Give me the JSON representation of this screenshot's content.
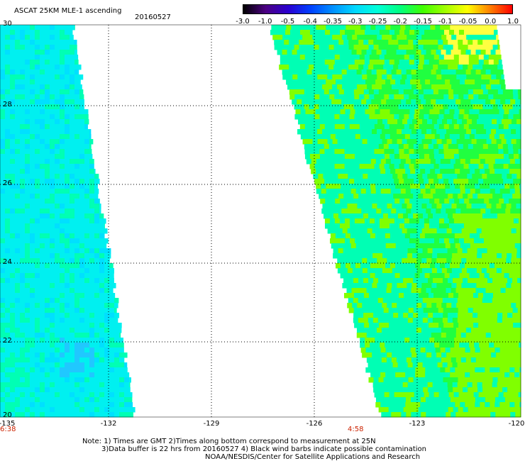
{
  "header": {
    "title": "ASCAT 25KM MLE-1 ascending",
    "date": "20160527"
  },
  "colorbar": {
    "labels": [
      "-3.0",
      "-1.0",
      "-0.5",
      "-0.4",
      "-0.35",
      "-0.3",
      "-0.25",
      "-0.2",
      "-0.15",
      "-0.1",
      "-0.05",
      "0.0",
      "1.0"
    ],
    "colors": [
      "#000000",
      "#4b0082",
      "#2a00d0",
      "#0040ff",
      "#0090ff",
      "#00d8ff",
      "#00ffd8",
      "#00ff80",
      "#40ff00",
      "#a0ff00",
      "#ffff00",
      "#ff8000",
      "#ff0000"
    ]
  },
  "axes": {
    "x_ticks": [
      "-135",
      "-132",
      "-129",
      "-126",
      "-123",
      "-120"
    ],
    "y_ticks": [
      "30",
      "28",
      "26",
      "24",
      "22",
      "20"
    ],
    "times": [
      "6:38",
      "4:58"
    ]
  },
  "footer": {
    "line1": "Note: 1) Times are GMT 2)Times along bottom correspond to measurement at 25N",
    "line2": "3)Data buffer is 22 hrs from 20160527 4) Black wind barbs indicate possible contamination",
    "line3": "NOAA/NESDIS/Center for Satellite Applications and Research"
  },
  "colors": {
    "cyan": "#00f0f0",
    "light_blue": "#00e0ff",
    "aqua_green": "#00ffb4",
    "green": "#20ff40",
    "lime": "#80ff00",
    "yellow": "#ffff40"
  }
}
